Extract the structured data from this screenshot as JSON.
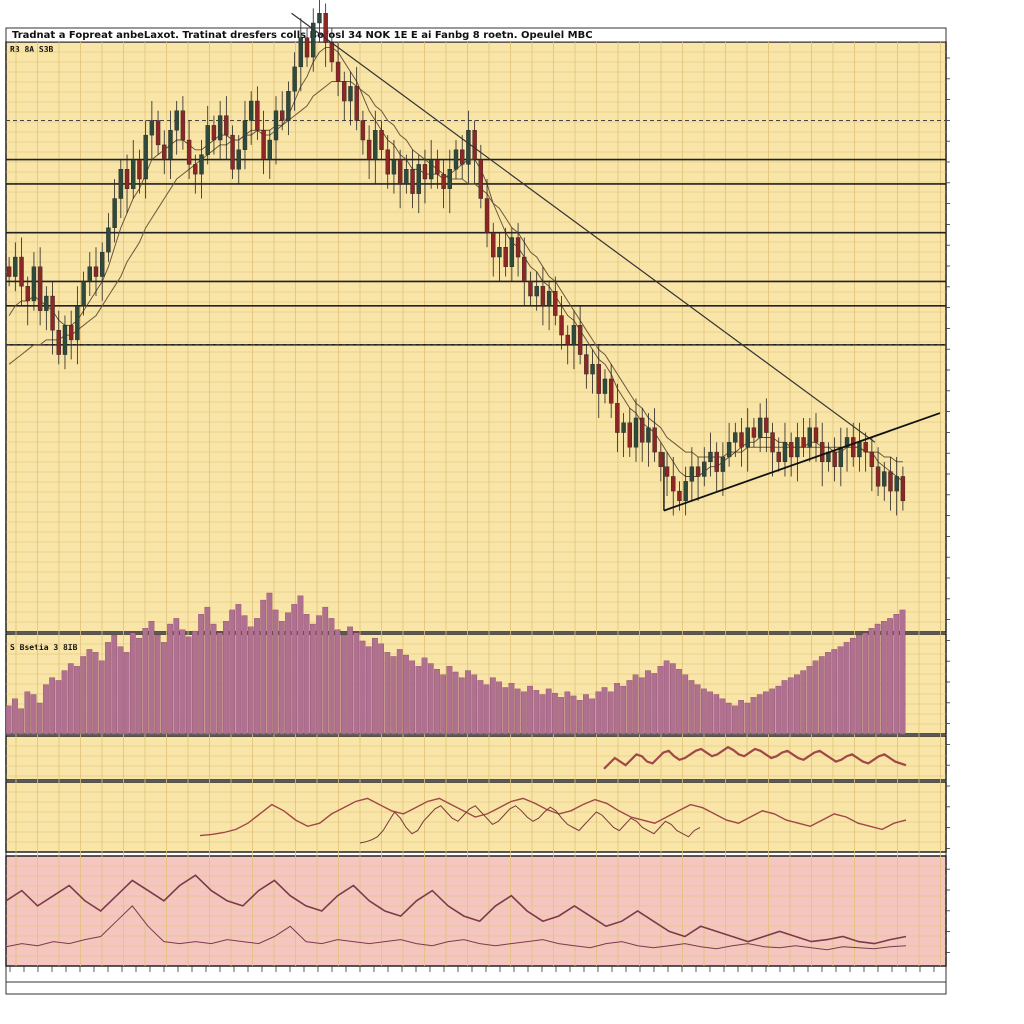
{
  "header": {
    "title": "Tradnat a Fopreat anbeLaxot. Tratinat dresfers colls Bofosl 34 NOK 1E E ai Fanbg 8 roetn. Opeulel MBC",
    "price_panel_label": "R3 8A S3B"
  },
  "volume_panel": {
    "label": "S Bsetia 3 8IB"
  },
  "colors": {
    "panel_bg": "#f9e5a8",
    "indicator_bg": "#f5c6c0",
    "grid": "#e0c27a",
    "bull": "#2e4a3c",
    "bear": "#8f2626",
    "volume": "#b07090",
    "oscillator": "#a04848"
  },
  "chart_data": [
    {
      "type": "candlestick",
      "panel": "price",
      "title": "Tradnat a Fopreat anbeLaxot. Tratinat dresfers colls Bofosl 34 NOK 1E E ai Fanbg 8 roetn. Opeulel MBC",
      "ylim": [
        0,
        100
      ],
      "close": [
        56,
        60,
        54,
        51,
        58,
        49,
        52,
        45,
        40,
        46,
        43,
        50,
        55,
        58,
        56,
        61,
        66,
        72,
        78,
        74,
        80,
        76,
        85,
        88,
        83,
        80,
        86,
        90,
        84,
        79,
        77,
        81,
        87,
        84,
        89,
        85,
        78,
        82,
        88,
        92,
        86,
        80,
        84,
        90,
        88,
        94,
        99,
        105,
        101,
        108,
        110,
        104,
        100,
        96,
        92,
        95,
        88,
        84,
        80,
        86,
        82,
        77,
        80,
        75,
        78,
        73,
        79,
        76,
        80,
        77,
        74,
        78,
        82,
        79,
        86,
        80,
        72,
        65,
        60,
        62,
        58,
        64,
        60,
        55,
        52,
        54,
        50,
        53,
        48,
        44,
        42,
        46,
        40,
        36,
        38,
        32,
        35,
        30,
        24,
        26,
        21,
        27,
        22,
        25,
        20,
        17,
        15,
        12,
        10,
        14,
        17,
        15,
        18,
        20,
        16,
        19,
        22,
        24,
        21,
        25,
        23,
        27,
        24,
        20,
        18,
        22,
        19,
        23,
        21,
        25,
        22,
        18,
        20,
        17,
        21,
        23,
        19,
        22,
        20,
        17,
        13,
        16,
        12,
        15,
        10
      ],
      "ma_fast": [
        48,
        50,
        51,
        51,
        52,
        51,
        50,
        49,
        47,
        46,
        46,
        47,
        49,
        51,
        53,
        55,
        58,
        62,
        66,
        69,
        72,
        74,
        77,
        80,
        81,
        82,
        83,
        84,
        84,
        83,
        82,
        82,
        83,
        84,
        85,
        85,
        84,
        84,
        85,
        86,
        86,
        85,
        85,
        86,
        87,
        89,
        92,
        95,
        97,
        100,
        102,
        103,
        103,
        102,
        100,
        98,
        96,
        93,
        90,
        88,
        86,
        84,
        83,
        81,
        80,
        78,
        78,
        77,
        77,
        77,
        76,
        77,
        78,
        79,
        80,
        80,
        78,
        75,
        71,
        68,
        65,
        63,
        62,
        60,
        58,
        57,
        55,
        54,
        52,
        50,
        48,
        47,
        45,
        43,
        41,
        39,
        38,
        36,
        33,
        31,
        29,
        28,
        26,
        25,
        24,
        22,
        20,
        18,
        16,
        15,
        15,
        15,
        16,
        17,
        17,
        18,
        19,
        20,
        21,
        22,
        22,
        23,
        23,
        23,
        22,
        22,
        21,
        21,
        21,
        22,
        22,
        21,
        21,
        20,
        20,
        21,
        21,
        21,
        20,
        20,
        18,
        17,
        16,
        15,
        14
      ],
      "ma_slow": [
        38,
        39,
        40,
        41,
        42,
        42,
        43,
        43,
        43,
        44,
        44,
        45,
        46,
        47,
        48,
        50,
        52,
        54,
        56,
        59,
        61,
        63,
        66,
        68,
        70,
        72,
        74,
        76,
        77,
        78,
        79,
        80,
        81,
        82,
        83,
        83,
        84,
        84,
        85,
        85,
        86,
        86,
        86,
        87,
        87,
        88,
        89,
        90,
        91,
        93,
        94,
        95,
        96,
        96,
        96,
        96,
        95,
        94,
        93,
        91,
        90,
        88,
        87,
        85,
        84,
        82,
        81,
        80,
        79,
        78,
        77,
        76,
        76,
        76,
        75,
        75,
        74,
        73,
        71,
        70,
        68,
        66,
        65,
        63,
        61,
        60,
        58,
        56,
        55,
        53,
        51,
        49,
        47,
        45,
        43,
        41,
        40,
        38,
        36,
        34,
        32,
        30,
        29,
        27,
        26,
        25,
        23,
        22,
        21,
        20,
        20,
        19,
        19,
        19,
        19,
        19,
        20,
        20,
        20,
        21,
        21,
        21,
        21,
        21,
        21,
        21,
        21,
        21,
        21,
        21,
        21,
        21,
        21,
        21,
        21,
        21,
        21,
        21,
        20,
        20,
        20,
        19,
        19,
        18,
        18
      ],
      "hlines": [
        80,
        75,
        65,
        55,
        50,
        42
      ],
      "hlines_dashed": [
        88,
        42
      ]
    },
    {
      "type": "bar",
      "panel": "volume",
      "ylim": [
        0,
        100
      ],
      "values": [
        20,
        25,
        18,
        30,
        28,
        22,
        35,
        40,
        38,
        45,
        50,
        48,
        55,
        60,
        58,
        52,
        65,
        70,
        62,
        58,
        72,
        68,
        75,
        80,
        70,
        65,
        78,
        82,
        74,
        69,
        73,
        85,
        90,
        78,
        72,
        80,
        88,
        92,
        84,
        76,
        82,
        95,
        100,
        88,
        80,
        86,
        92,
        98,
        85,
        78,
        84,
        90,
        82,
        74,
        70,
        76,
        72,
        66,
        62,
        68,
        64,
        58,
        55,
        60,
        56,
        52,
        48,
        54,
        50,
        46,
        42,
        48,
        44,
        40,
        45,
        42,
        38,
        35,
        40,
        37,
        33,
        36,
        32,
        30,
        34,
        31,
        28,
        32,
        29,
        26,
        30,
        27,
        24,
        28,
        25,
        30,
        33,
        30,
        36,
        34,
        38,
        42,
        40,
        45,
        43,
        48,
        52,
        50,
        46,
        42,
        38,
        35,
        32,
        30,
        28,
        25,
        22,
        20,
        24,
        22,
        26,
        28,
        30,
        32,
        34,
        38,
        40,
        42,
        45,
        48,
        52,
        55,
        58,
        60,
        62,
        65,
        68,
        70,
        72,
        75,
        78,
        80,
        82,
        85,
        88
      ]
    },
    {
      "type": "line",
      "panel": "oscillator-1",
      "ylim": [
        0,
        100
      ],
      "values": [
        20,
        35,
        50,
        40,
        30,
        45,
        60,
        55,
        40,
        35,
        50,
        65,
        70,
        55,
        45,
        50,
        60,
        70,
        75,
        65,
        55,
        60,
        70,
        80,
        72,
        60,
        55,
        65,
        75,
        70,
        60,
        50,
        55,
        65,
        70,
        60,
        50,
        45,
        55,
        65,
        70,
        60,
        50,
        40,
        45,
        55,
        60,
        50,
        40,
        35,
        45,
        55,
        60,
        50,
        40,
        35,
        30
      ]
    },
    {
      "type": "line",
      "panel": "oscillator-2",
      "ylim": [
        0,
        100
      ],
      "values": [
        20,
        22,
        25,
        30,
        40,
        55,
        70,
        60,
        45,
        35,
        40,
        55,
        65,
        75,
        80,
        70,
        60,
        55,
        65,
        75,
        80,
        70,
        60,
        50,
        55,
        65,
        75,
        80,
        72,
        62,
        55,
        60,
        70,
        78,
        72,
        60,
        50,
        45,
        40,
        50,
        60,
        70,
        65,
        55,
        45,
        40,
        50,
        60,
        55,
        45,
        40,
        35,
        45,
        55,
        50,
        40,
        35,
        30,
        40,
        45
      ]
    },
    {
      "type": "line",
      "panel": "indicator",
      "ylim": [
        0,
        100
      ],
      "series": [
        {
          "values": [
            60,
            70,
            55,
            65,
            75,
            60,
            50,
            65,
            80,
            70,
            60,
            75,
            85,
            70,
            60,
            55,
            70,
            80,
            65,
            55,
            50,
            65,
            75,
            60,
            50,
            45,
            60,
            70,
            55,
            45,
            40,
            55,
            65,
            50,
            40,
            45,
            55,
            45,
            35,
            40,
            50,
            40,
            30,
            25,
            35,
            30,
            25,
            20,
            25,
            30,
            25,
            20,
            22,
            25,
            20,
            18,
            22,
            25
          ]
        },
        {
          "values": [
            15,
            18,
            16,
            20,
            18,
            22,
            25,
            40,
            55,
            35,
            20,
            18,
            20,
            18,
            22,
            20,
            18,
            25,
            35,
            20,
            18,
            22,
            20,
            18,
            20,
            22,
            18,
            16,
            20,
            22,
            18,
            16,
            18,
            20,
            22,
            18,
            16,
            14,
            18,
            20,
            16,
            14,
            16,
            18,
            15,
            13,
            16,
            18,
            15,
            14,
            16,
            14,
            12,
            15,
            14,
            13,
            15,
            16
          ]
        }
      ]
    }
  ]
}
